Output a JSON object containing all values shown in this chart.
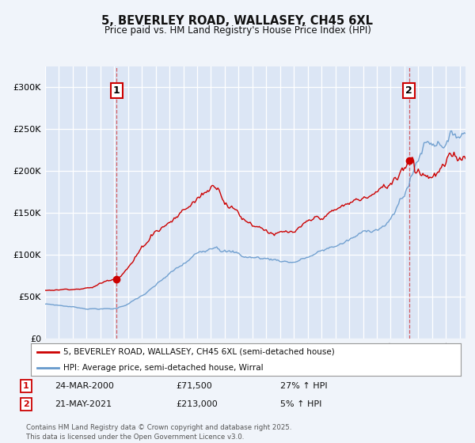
{
  "title": "5, BEVERLEY ROAD, WALLASEY, CH45 6XL",
  "subtitle": "Price paid vs. HM Land Registry's House Price Index (HPI)",
  "bg_color": "#f0f4fa",
  "plot_bg_color": "#dce6f5",
  "grid_color": "#ffffff",
  "red_color": "#cc0000",
  "blue_color": "#6699cc",
  "legend_label1": "5, BEVERLEY ROAD, WALLASEY, CH45 6XL (semi-detached house)",
  "legend_label2": "HPI: Average price, semi-detached house, Wirral",
  "marker1_date_str": "24-MAR-2000",
  "marker2_date_str": "21-MAY-2021",
  "marker1_price_str": "£71,500",
  "marker2_price_str": "£213,000",
  "marker1_hpi_str": "27% ↑ HPI",
  "marker2_hpi_str": "5% ↑ HPI",
  "footer": "Contains HM Land Registry data © Crown copyright and database right 2025.\nThis data is licensed under the Open Government Licence v3.0.",
  "ylim": [
    0,
    325000
  ],
  "yticks": [
    0,
    50000,
    100000,
    150000,
    200000,
    250000,
    300000
  ]
}
